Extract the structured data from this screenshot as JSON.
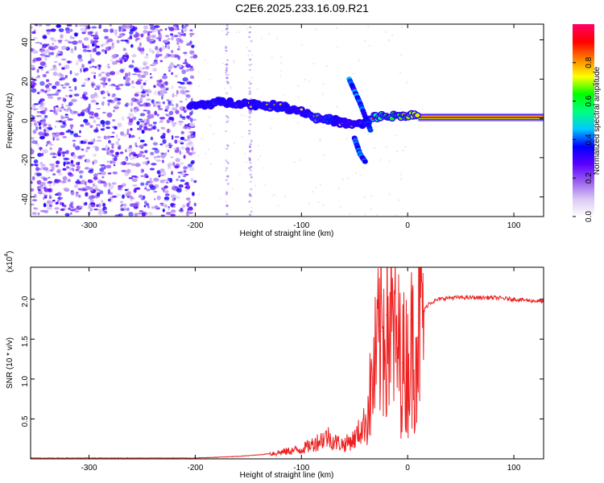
{
  "title": "C2E6.2025.233.16.09.R21",
  "chart_data": [
    {
      "type": "heatmap",
      "name": "spectrogram",
      "xlabel": "Height of straight line (km)",
      "ylabel": "Frequency (Hz)",
      "xlim": [
        -355,
        128
      ],
      "ylim": [
        -50,
        48
      ],
      "xticks": [
        -300,
        -200,
        -100,
        0,
        100
      ],
      "yticks": [
        -40,
        -20,
        0,
        20,
        40
      ],
      "colorbar": {
        "label": "Normalized spectral amplitude",
        "range": [
          0.0,
          1.0
        ],
        "ticks": [
          0.0,
          0.2,
          0.4,
          0.6,
          0.8
        ],
        "tick_labels": [
          "0.0",
          "0.2",
          "0.4",
          "0.6",
          "0.8"
        ],
        "colormap": [
          "#ffffff",
          "#d9c8f2",
          "#9a5ef0",
          "#5a00ff",
          "#0000ff",
          "#00c8ff",
          "#00ff80",
          "#00ff00",
          "#ffff00",
          "#ff8000",
          "#ff0000",
          "#ff0066"
        ]
      },
      "signal_track": {
        "x": [
          -205,
          -180,
          -160,
          -140,
          -120,
          -100,
          -85,
          -70,
          -55,
          -40,
          -30,
          -20,
          -10,
          0,
          10,
          50,
          128
        ],
        "frequency": [
          6,
          8,
          8,
          7,
          6,
          4,
          0,
          -1,
          -3,
          -3,
          1,
          1,
          1,
          2,
          1,
          0.5,
          0.5
        ],
        "amplitude": [
          0.45,
          0.5,
          0.45,
          0.5,
          0.5,
          0.45,
          0.55,
          0.5,
          0.4,
          0.5,
          0.7,
          0.8,
          0.85,
          0.9,
          0.95,
          1.0,
          1.0
        ]
      },
      "noise_region_x": [
        -355,
        -200
      ]
    },
    {
      "type": "line",
      "name": "snr",
      "xlabel": "Height of straight line (km)",
      "ylabel": "SNR (10 * v/v)",
      "scale_label": "(x10",
      "scale_exponent": "4",
      "scale_suffix": ")",
      "xlim": [
        -355,
        128
      ],
      "ylim": [
        0,
        2.4
      ],
      "xticks": [
        -300,
        -200,
        -100,
        0,
        100
      ],
      "yticks": [
        0.5,
        1.0,
        1.5,
        2.0
      ],
      "ytick_labels": [
        "0.5",
        "1.0",
        "1.5",
        "2.0"
      ],
      "color": "#ee2222",
      "series": [
        {
          "name": "SNR",
          "x": [
            -355,
            -300,
            -250,
            -200,
            -180,
            -160,
            -140,
            -120,
            -110,
            -100,
            -90,
            -80,
            -75,
            -70,
            -60,
            -50,
            -40,
            -35,
            -30,
            -25,
            -20,
            -15,
            -10,
            -5,
            0,
            5,
            10,
            15,
            20,
            30,
            40,
            50,
            60,
            80,
            100,
            128
          ],
          "y": [
            0.01,
            0.01,
            0.01,
            0.01,
            0.02,
            0.03,
            0.05,
            0.08,
            0.1,
            0.12,
            0.18,
            0.25,
            0.28,
            0.22,
            0.18,
            0.25,
            0.45,
            0.8,
            1.2,
            1.6,
            1.8,
            1.6,
            1.4,
            1.2,
            1.2,
            1.45,
            1.7,
            1.85,
            1.95,
            2.0,
            2.02,
            2.02,
            2.02,
            2.02,
            2.0,
            1.97
          ]
        }
      ]
    }
  ]
}
